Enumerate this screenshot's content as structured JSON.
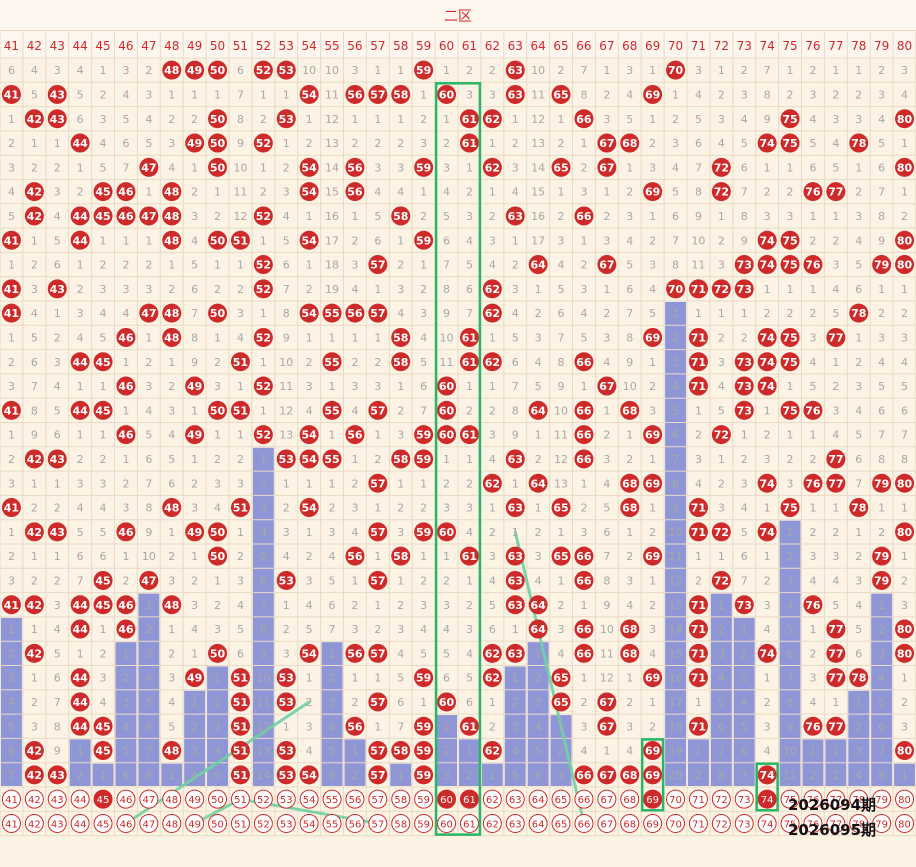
{
  "zone_title": "二区",
  "chart_data": {
    "type": "table",
    "title": "二区",
    "columns": [
      "41",
      "42",
      "43",
      "44",
      "45",
      "46",
      "47",
      "48",
      "49",
      "50",
      "51",
      "52",
      "53",
      "54",
      "55",
      "56",
      "57",
      "58",
      "59",
      "60",
      "61",
      "62",
      "63",
      "64",
      "65",
      "66",
      "67",
      "68",
      "69",
      "70",
      "71",
      "72",
      "73",
      "74",
      "75",
      "76",
      "77",
      "78",
      "79",
      "80"
    ],
    "rows": [
      [
        "6",
        "4",
        "3",
        "4",
        "1",
        "3",
        "2",
        "48",
        "49",
        "50",
        "6",
        "52",
        "53",
        "10",
        "10",
        "3",
        "1",
        "1",
        "59",
        "1",
        "2",
        "2",
        "63",
        "10",
        "2",
        "7",
        "1",
        "3",
        "1",
        "70",
        "3",
        "1",
        "2",
        "7",
        "1",
        "2",
        "1",
        "1",
        "2",
        "3"
      ],
      [
        "41",
        "5",
        "43",
        "5",
        "2",
        "4",
        "3",
        "1",
        "1",
        "1",
        "7",
        "1",
        "1",
        "54",
        "11",
        "56",
        "57",
        "58",
        "1",
        "60",
        "3",
        "3",
        "63",
        "11",
        "65",
        "8",
        "2",
        "4",
        "69",
        "1",
        "4",
        "2",
        "3",
        "8",
        "2",
        "3",
        "2",
        "2",
        "3",
        "4"
      ],
      [
        "1",
        "42",
        "43",
        "6",
        "3",
        "5",
        "4",
        "2",
        "2",
        "50",
        "8",
        "2",
        "53",
        "1",
        "12",
        "1",
        "1",
        "1",
        "2",
        "1",
        "61",
        "62",
        "1",
        "12",
        "1",
        "66",
        "3",
        "5",
        "1",
        "2",
        "5",
        "3",
        "4",
        "9",
        "75",
        "4",
        "3",
        "3",
        "4",
        "80"
      ],
      [
        "2",
        "1",
        "1",
        "44",
        "4",
        "6",
        "5",
        "3",
        "49",
        "50",
        "9",
        "52",
        "1",
        "2",
        "13",
        "2",
        "2",
        "2",
        "3",
        "2",
        "61",
        "1",
        "2",
        "13",
        "2",
        "1",
        "67",
        "68",
        "2",
        "3",
        "6",
        "4",
        "5",
        "74",
        "75",
        "5",
        "4",
        "78",
        "5",
        "1"
      ],
      [
        "3",
        "2",
        "2",
        "1",
        "5",
        "7",
        "47",
        "4",
        "1",
        "50",
        "10",
        "1",
        "2",
        "54",
        "14",
        "56",
        "3",
        "3",
        "59",
        "3",
        "1",
        "62",
        "3",
        "14",
        "65",
        "2",
        "67",
        "1",
        "3",
        "4",
        "7",
        "72",
        "6",
        "1",
        "1",
        "6",
        "5",
        "1",
        "6",
        "80"
      ],
      [
        "4",
        "42",
        "3",
        "2",
        "45",
        "46",
        "1",
        "48",
        "2",
        "1",
        "11",
        "2",
        "3",
        "54",
        "15",
        "56",
        "4",
        "4",
        "1",
        "4",
        "2",
        "1",
        "4",
        "15",
        "1",
        "3",
        "1",
        "2",
        "69",
        "5",
        "8",
        "72",
        "7",
        "2",
        "2",
        "76",
        "77",
        "2",
        "7",
        "1"
      ],
      [
        "5",
        "42",
        "4",
        "44",
        "45",
        "46",
        "47",
        "48",
        "3",
        "2",
        "12",
        "52",
        "4",
        "1",
        "16",
        "1",
        "5",
        "58",
        "2",
        "5",
        "3",
        "2",
        "63",
        "16",
        "2",
        "66",
        "2",
        "3",
        "1",
        "6",
        "9",
        "1",
        "8",
        "3",
        "3",
        "1",
        "1",
        "3",
        "8",
        "2"
      ],
      [
        "41",
        "1",
        "5",
        "44",
        "1",
        "1",
        "1",
        "48",
        "4",
        "50",
        "51",
        "1",
        "5",
        "54",
        "17",
        "2",
        "6",
        "1",
        "59",
        "6",
        "4",
        "3",
        "1",
        "17",
        "3",
        "1",
        "3",
        "4",
        "2",
        "7",
        "10",
        "2",
        "9",
        "74",
        "75",
        "2",
        "2",
        "4",
        "9",
        "80"
      ],
      [
        "1",
        "2",
        "6",
        "1",
        "2",
        "2",
        "2",
        "1",
        "5",
        "1",
        "1",
        "52",
        "6",
        "1",
        "18",
        "3",
        "57",
        "2",
        "1",
        "7",
        "5",
        "4",
        "2",
        "64",
        "4",
        "2",
        "67",
        "5",
        "3",
        "8",
        "11",
        "3",
        "73",
        "74",
        "75",
        "76",
        "3",
        "5",
        "79",
        "80"
      ],
      [
        "41",
        "3",
        "43",
        "2",
        "3",
        "3",
        "3",
        "2",
        "6",
        "2",
        "2",
        "52",
        "7",
        "2",
        "19",
        "4",
        "1",
        "3",
        "2",
        "8",
        "6",
        "62",
        "3",
        "1",
        "5",
        "3",
        "1",
        "6",
        "4",
        "70",
        "71",
        "72",
        "73",
        "1",
        "1",
        "1",
        "4",
        "6",
        "1",
        "1"
      ],
      [
        "41",
        "4",
        "1",
        "3",
        "4",
        "4",
        "47",
        "48",
        "7",
        "50",
        "3",
        "1",
        "8",
        "54",
        "55",
        "56",
        "57",
        "4",
        "3",
        "9",
        "7",
        "62",
        "4",
        "2",
        "6",
        "4",
        "2",
        "7",
        "5",
        "1",
        "1",
        "1",
        "1",
        "2",
        "2",
        "2",
        "5",
        "78",
        "2",
        "2"
      ],
      [
        "1",
        "5",
        "2",
        "4",
        "5",
        "46",
        "1",
        "48",
        "8",
        "1",
        "4",
        "52",
        "9",
        "1",
        "1",
        "1",
        "1",
        "58",
        "4",
        "10",
        "61",
        "1",
        "5",
        "3",
        "7",
        "5",
        "3",
        "8",
        "69",
        "2",
        "71",
        "2",
        "2",
        "74",
        "75",
        "3",
        "77",
        "1",
        "3",
        "3"
      ],
      [
        "2",
        "6",
        "3",
        "44",
        "45",
        "1",
        "2",
        "1",
        "9",
        "2",
        "51",
        "1",
        "10",
        "2",
        "55",
        "2",
        "2",
        "58",
        "5",
        "11",
        "61",
        "62",
        "6",
        "4",
        "8",
        "66",
        "4",
        "9",
        "1",
        "3",
        "71",
        "3",
        "73",
        "74",
        "75",
        "4",
        "1",
        "2",
        "4",
        "4"
      ],
      [
        "3",
        "7",
        "4",
        "1",
        "1",
        "46",
        "3",
        "2",
        "49",
        "3",
        "1",
        "52",
        "11",
        "3",
        "1",
        "3",
        "3",
        "1",
        "6",
        "60",
        "1",
        "1",
        "7",
        "5",
        "9",
        "1",
        "67",
        "10",
        "2",
        "4",
        "71",
        "4",
        "73",
        "74",
        "1",
        "5",
        "2",
        "3",
        "5",
        "5"
      ],
      [
        "41",
        "8",
        "5",
        "44",
        "45",
        "1",
        "4",
        "3",
        "1",
        "50",
        "51",
        "1",
        "12",
        "4",
        "55",
        "4",
        "57",
        "2",
        "7",
        "60",
        "2",
        "2",
        "8",
        "64",
        "10",
        "66",
        "1",
        "68",
        "3",
        "5",
        "1",
        "5",
        "73",
        "1",
        "75",
        "76",
        "3",
        "4",
        "6",
        "6"
      ],
      [
        "1",
        "9",
        "6",
        "1",
        "1",
        "46",
        "5",
        "4",
        "49",
        "1",
        "1",
        "52",
        "13",
        "54",
        "1",
        "56",
        "1",
        "3",
        "59",
        "60",
        "61",
        "3",
        "9",
        "1",
        "11",
        "66",
        "2",
        "1",
        "69",
        "6",
        "2",
        "72",
        "1",
        "2",
        "1",
        "1",
        "4",
        "5",
        "7",
        "7"
      ],
      [
        "2",
        "42",
        "43",
        "2",
        "2",
        "1",
        "6",
        "5",
        "1",
        "2",
        "2",
        "1",
        "53",
        "54",
        "55",
        "1",
        "2",
        "58",
        "59",
        "1",
        "1",
        "4",
        "63",
        "2",
        "12",
        "66",
        "3",
        "2",
        "1",
        "7",
        "3",
        "1",
        "2",
        "3",
        "2",
        "2",
        "77",
        "6",
        "8",
        "8"
      ],
      [
        "3",
        "1",
        "1",
        "3",
        "3",
        "2",
        "7",
        "6",
        "2",
        "3",
        "3",
        "2",
        "1",
        "1",
        "1",
        "2",
        "57",
        "1",
        "1",
        "2",
        "2",
        "62",
        "1",
        "64",
        "13",
        "1",
        "4",
        "68",
        "69",
        "8",
        "4",
        "2",
        "3",
        "74",
        "3",
        "76",
        "77",
        "7",
        "79",
        "80"
      ],
      [
        "41",
        "2",
        "2",
        "4",
        "4",
        "3",
        "8",
        "48",
        "3",
        "4",
        "51",
        "3",
        "2",
        "54",
        "2",
        "3",
        "1",
        "2",
        "2",
        "3",
        "3",
        "1",
        "63",
        "1",
        "65",
        "2",
        "5",
        "68",
        "1",
        "9",
        "71",
        "3",
        "4",
        "1",
        "75",
        "1",
        "1",
        "78",
        "1",
        "1"
      ],
      [
        "1",
        "42",
        "43",
        "5",
        "5",
        "46",
        "9",
        "1",
        "49",
        "50",
        "1",
        "4",
        "3",
        "1",
        "3",
        "4",
        "57",
        "3",
        "59",
        "60",
        "4",
        "2",
        "1",
        "2",
        "1",
        "3",
        "6",
        "1",
        "2",
        "10",
        "71",
        "72",
        "5",
        "74",
        "1",
        "2",
        "2",
        "1",
        "2",
        "80"
      ],
      [
        "2",
        "1",
        "1",
        "6",
        "6",
        "1",
        "10",
        "2",
        "1",
        "50",
        "2",
        "5",
        "4",
        "2",
        "4",
        "56",
        "1",
        "58",
        "1",
        "1",
        "61",
        "3",
        "63",
        "3",
        "65",
        "66",
        "7",
        "2",
        "69",
        "11",
        "1",
        "1",
        "6",
        "1",
        "2",
        "3",
        "3",
        "2",
        "79",
        "1"
      ],
      [
        "3",
        "2",
        "2",
        "7",
        "45",
        "2",
        "47",
        "3",
        "2",
        "1",
        "3",
        "6",
        "53",
        "3",
        "5",
        "1",
        "57",
        "1",
        "2",
        "2",
        "1",
        "4",
        "63",
        "4",
        "1",
        "66",
        "8",
        "3",
        "1",
        "12",
        "2",
        "72",
        "7",
        "2",
        "3",
        "4",
        "4",
        "3",
        "79",
        "2"
      ],
      [
        "41",
        "42",
        "3",
        "44",
        "45",
        "46",
        "1",
        "48",
        "3",
        "2",
        "4",
        "7",
        "1",
        "4",
        "6",
        "2",
        "1",
        "2",
        "3",
        "3",
        "2",
        "5",
        "63",
        "64",
        "2",
        "1",
        "9",
        "4",
        "2",
        "13",
        "71",
        "1",
        "73",
        "3",
        "4",
        "76",
        "5",
        "4",
        "1",
        "3"
      ],
      [
        "1",
        "1",
        "4",
        "44",
        "1",
        "46",
        "2",
        "1",
        "4",
        "3",
        "5",
        "8",
        "2",
        "5",
        "7",
        "3",
        "2",
        "3",
        "4",
        "4",
        "3",
        "6",
        "1",
        "64",
        "3",
        "66",
        "10",
        "68",
        "3",
        "14",
        "71",
        "2",
        "1",
        "4",
        "5",
        "1",
        "77",
        "5",
        "2",
        "80"
      ],
      [
        "2",
        "42",
        "5",
        "1",
        "2",
        "1",
        "3",
        "2",
        "1",
        "50",
        "6",
        "9",
        "3",
        "54",
        "1",
        "56",
        "57",
        "4",
        "5",
        "5",
        "4",
        "62",
        "63",
        "1",
        "4",
        "66",
        "11",
        "68",
        "4",
        "15",
        "71",
        "3",
        "2",
        "74",
        "6",
        "2",
        "77",
        "6",
        "3",
        "80"
      ],
      [
        "3",
        "1",
        "6",
        "44",
        "3",
        "2",
        "4",
        "3",
        "49",
        "1",
        "51",
        "10",
        "53",
        "1",
        "2",
        "1",
        "1",
        "5",
        "59",
        "6",
        "5",
        "62",
        "1",
        "2",
        "65",
        "1",
        "12",
        "1",
        "69",
        "16",
        "71",
        "4",
        "3",
        "1",
        "7",
        "3",
        "77",
        "78",
        "4",
        "1"
      ],
      [
        "4",
        "2",
        "7",
        "44",
        "4",
        "3",
        "5",
        "4",
        "1",
        "2",
        "51",
        "11",
        "53",
        "2",
        "3",
        "2",
        "57",
        "6",
        "1",
        "60",
        "6",
        "1",
        "2",
        "3",
        "65",
        "2",
        "67",
        "2",
        "1",
        "17",
        "1",
        "5",
        "4",
        "2",
        "8",
        "4",
        "1",
        "1",
        "5",
        "2"
      ],
      [
        "5",
        "3",
        "8",
        "44",
        "45",
        "4",
        "6",
        "5",
        "2",
        "3",
        "51",
        "12",
        "1",
        "3",
        "4",
        "56",
        "1",
        "7",
        "59",
        "1",
        "61",
        "2",
        "3",
        "4",
        "1",
        "3",
        "67",
        "3",
        "2",
        "18",
        "71",
        "6",
        "5",
        "3",
        "9",
        "76",
        "77",
        "2",
        "6",
        "3"
      ],
      [
        "6",
        "42",
        "9",
        "1",
        "45",
        "5",
        "7",
        "48",
        "3",
        "4",
        "51",
        "13",
        "53",
        "4",
        "5",
        "1",
        "57",
        "58",
        "59",
        "2",
        "1",
        "62",
        "4",
        "5",
        "2",
        "4",
        "1",
        "4",
        "69",
        "19",
        "1",
        "7",
        "6",
        "4",
        "10",
        "1",
        "1",
        "3",
        "7",
        "80"
      ],
      [
        "7",
        "42",
        "43",
        "2",
        "1",
        "6",
        "8",
        "1",
        "4",
        "5",
        "51",
        "14",
        "53",
        "54",
        "6",
        "2",
        "57",
        "1",
        "59",
        "3",
        "2",
        "1",
        "5",
        "6",
        "3",
        "66",
        "67",
        "68",
        "69",
        "20",
        "2",
        "8",
        "7",
        "74",
        "11",
        "2",
        "2",
        "4",
        "8",
        "1"
      ]
    ],
    "forecast_rows": [
      [
        "41",
        "42",
        "43",
        "44",
        "45",
        "46",
        "47",
        "48",
        "49",
        "50",
        "51",
        "52",
        "53",
        "54",
        "55",
        "56",
        "57",
        "58",
        "59",
        "60",
        "61",
        "62",
        "63",
        "64",
        "65",
        "66",
        "67",
        "68",
        "69",
        "70",
        "71",
        "72",
        "73",
        "74",
        "75",
        "76",
        "77",
        "78",
        "79",
        "80"
      ],
      [
        "41",
        "42",
        "43",
        "44",
        "45",
        "46",
        "47",
        "48",
        "49",
        "50",
        "51",
        "52",
        "53",
        "54",
        "55",
        "56",
        "57",
        "58",
        "59",
        "60",
        "61",
        "62",
        "63",
        "64",
        "65",
        "66",
        "67",
        "68",
        "69",
        "70",
        "71",
        "72",
        "73",
        "74",
        "75",
        "76",
        "77",
        "78",
        "79",
        "80"
      ]
    ],
    "forecast_filled": [
      [
        "45",
        "60",
        "61",
        "69",
        "74"
      ],
      []
    ],
    "issue_labels": [
      "2026094期",
      "2026095期"
    ],
    "highlight_boxes": [
      {
        "col": "60",
        "col_end": "61",
        "row_start": 2,
        "row_end": 32
      },
      {
        "col": "69",
        "col_end": "69",
        "row_start": 29,
        "row_end": 31
      },
      {
        "col": "74",
        "col_end": "74",
        "row_start": 30,
        "row_end": 31
      }
    ],
    "trend_lines": [
      {
        "from": [
          "54",
          26
        ],
        "to": [
          "46",
          31
        ]
      },
      {
        "from": [
          "51",
          30
        ],
        "to": [
          "49",
          31
        ]
      },
      {
        "from": [
          "51",
          30
        ],
        "to": [
          "57",
          31
        ]
      },
      {
        "from": [
          "63",
          19
        ],
        "to": [
          "66",
          31
        ]
      }
    ],
    "colors": {
      "ball": "#cf2a2a",
      "bar": "#8f96d6",
      "box": "#27b765",
      "trend": "#6fd2a3",
      "header_text": "#d2282b",
      "missing_text": "#a8a8a8",
      "background": "#fcf3e4"
    }
  }
}
